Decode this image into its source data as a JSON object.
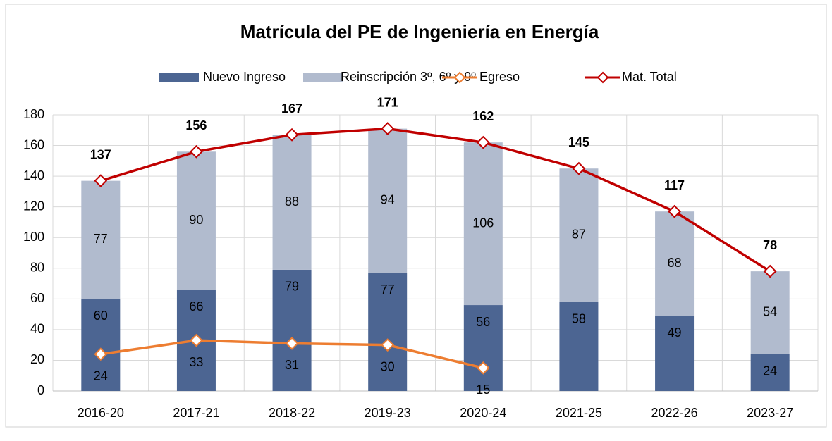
{
  "chart_data": {
    "type": "bar",
    "stacked": true,
    "title": "Matrícula del PE de Ingeniería en Energía",
    "categories": [
      "2016-20",
      "2017-21",
      "2018-22",
      "2019-23",
      "2020-24",
      "2021-25",
      "2022-26",
      "2023-27"
    ],
    "series": [
      {
        "name": "Nuevo Ingreso",
        "type": "bar",
        "color": "#4c6592",
        "values": [
          60,
          66,
          79,
          77,
          56,
          58,
          49,
          24
        ]
      },
      {
        "name": "Reinscripción 3º, 6º y 9º",
        "type": "bar",
        "color": "#b1bbce",
        "values": [
          77,
          90,
          88,
          94,
          106,
          87,
          68,
          54
        ]
      },
      {
        "name": "Egreso",
        "type": "line",
        "color": "#ed7d31",
        "values": [
          24,
          33,
          31,
          30,
          15,
          null,
          null,
          null
        ]
      },
      {
        "name": "Mat. Total",
        "type": "line",
        "color": "#c00000",
        "values": [
          137,
          156,
          167,
          171,
          162,
          145,
          117,
          78
        ]
      }
    ],
    "ylim": [
      0,
      180
    ],
    "yticks": [
      0,
      20,
      40,
      60,
      80,
      100,
      120,
      140,
      160,
      180
    ],
    "grid": true,
    "legend": "top"
  }
}
